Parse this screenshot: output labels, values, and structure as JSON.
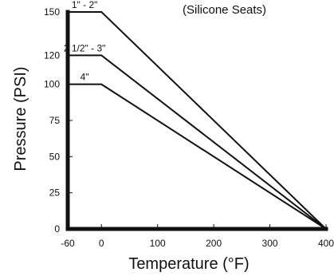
{
  "chart_data": {
    "type": "line",
    "title": "(Silicone Seats)",
    "xlabel": "Temperature (°F)",
    "ylabel": "Pressure (PSI)",
    "xlim": [
      -60,
      400
    ],
    "ylim": [
      0,
      150
    ],
    "x_ticks": [
      -60,
      0,
      100,
      200,
      300,
      400
    ],
    "x_tick_labels": [
      "-60",
      "0",
      "100",
      "200",
      "300",
      "400"
    ],
    "y_ticks": [
      0,
      25,
      50,
      75,
      100,
      120,
      150
    ],
    "y_tick_labels": [
      "0",
      "25",
      "50",
      "75",
      "100",
      "120",
      "150"
    ],
    "grid": false,
    "series": [
      {
        "name": "1\" - 2\"",
        "x": [
          -60,
          0,
          400
        ],
        "y": [
          150,
          150,
          0
        ]
      },
      {
        "name": "2 1/2\" - 3\"",
        "x": [
          -60,
          0,
          400
        ],
        "y": [
          120,
          120,
          0
        ]
      },
      {
        "name": "4\"",
        "x": [
          -60,
          0,
          400
        ],
        "y": [
          100,
          100,
          0
        ]
      }
    ],
    "colors": {
      "axis": "#111111",
      "series": "#111111"
    }
  }
}
